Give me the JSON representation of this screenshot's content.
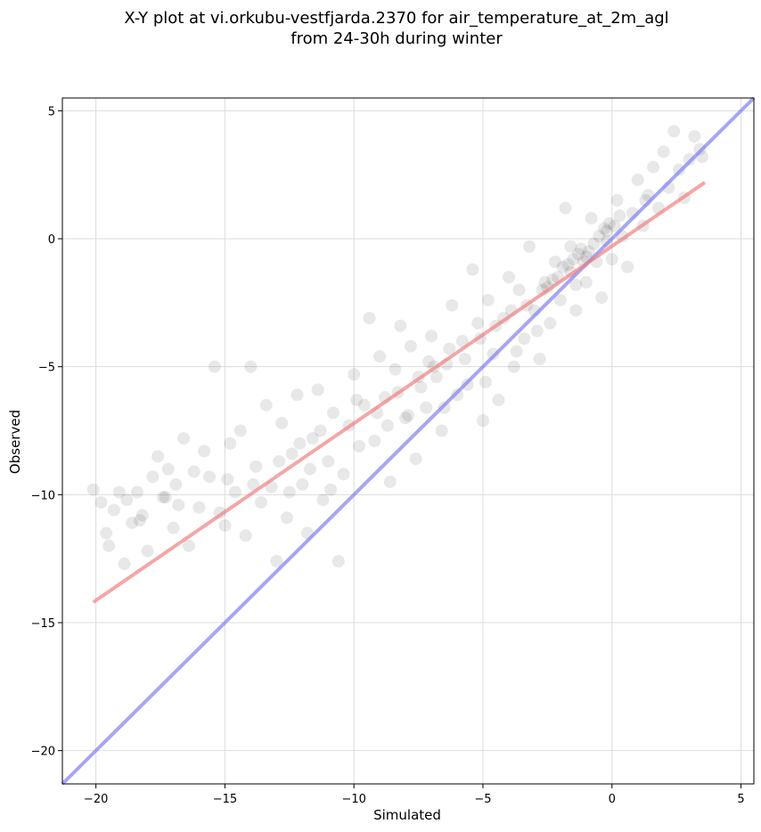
{
  "chart_data": {
    "type": "scatter",
    "title": [
      "X-Y plot at vi.orkubu-vestfjarda.2370 for air_temperature_at_2m_agl",
      "from 24-30h during winter"
    ],
    "xlabel": "Simulated",
    "ylabel": "Observed",
    "xlim": [
      -21.3,
      5.5
    ],
    "ylim": [
      -21.3,
      5.5
    ],
    "xticks": [
      -20,
      -15,
      -10,
      -5,
      0,
      5
    ],
    "yticks": [
      -20,
      -15,
      -10,
      -5,
      0,
      5
    ],
    "xtick_labels": [
      "−20",
      "−15",
      "−10",
      "−5",
      "0",
      "5"
    ],
    "ytick_labels": [
      "−20",
      "−15",
      "−10",
      "−5",
      "0",
      "5"
    ],
    "grid": true,
    "points": [
      [
        -20.1,
        -9.8
      ],
      [
        -19.8,
        -10.3
      ],
      [
        -19.6,
        -11.5
      ],
      [
        -19.5,
        -12.0
      ],
      [
        -19.3,
        -10.6
      ],
      [
        -19.1,
        -9.9
      ],
      [
        -18.9,
        -12.7
      ],
      [
        -18.8,
        -10.2
      ],
      [
        -18.6,
        -11.1
      ],
      [
        -18.4,
        -9.9
      ],
      [
        -18.2,
        -10.8
      ],
      [
        -18.0,
        -12.2
      ],
      [
        -17.8,
        -9.3
      ],
      [
        -17.6,
        -8.5
      ],
      [
        -17.4,
        -10.1
      ],
      [
        -17.2,
        -9.0
      ],
      [
        -17.0,
        -11.3
      ],
      [
        -16.8,
        -10.4
      ],
      [
        -16.6,
        -7.8
      ],
      [
        -16.4,
        -12.0
      ],
      [
        -16.2,
        -9.1
      ],
      [
        -16.0,
        -10.5
      ],
      [
        -15.8,
        -8.3
      ],
      [
        -15.6,
        -9.3
      ],
      [
        -15.4,
        -5.0
      ],
      [
        -15.2,
        -10.7
      ],
      [
        -15.0,
        -11.2
      ],
      [
        -14.8,
        -8.0
      ],
      [
        -14.6,
        -9.9
      ],
      [
        -14.4,
        -7.5
      ],
      [
        -14.2,
        -11.6
      ],
      [
        -14.0,
        -5.0
      ],
      [
        -13.8,
        -8.9
      ],
      [
        -13.6,
        -10.3
      ],
      [
        -13.4,
        -6.5
      ],
      [
        -13.2,
        -9.7
      ],
      [
        -13.0,
        -12.6
      ],
      [
        -12.8,
        -7.2
      ],
      [
        -12.6,
        -10.9
      ],
      [
        -12.4,
        -8.4
      ],
      [
        -12.2,
        -6.1
      ],
      [
        -12.0,
        -9.6
      ],
      [
        -11.8,
        -11.5
      ],
      [
        -11.6,
        -7.8
      ],
      [
        -11.4,
        -5.9
      ],
      [
        -11.2,
        -10.2
      ],
      [
        -11.0,
        -8.7
      ],
      [
        -10.8,
        -6.8
      ],
      [
        -10.6,
        -12.6
      ],
      [
        -10.4,
        -9.2
      ],
      [
        -10.2,
        -7.3
      ],
      [
        -10.0,
        -5.3
      ],
      [
        -9.8,
        -8.1
      ],
      [
        -9.6,
        -6.5
      ],
      [
        -9.4,
        -3.1
      ],
      [
        -9.2,
        -7.9
      ],
      [
        -9.0,
        -4.6
      ],
      [
        -8.8,
        -6.2
      ],
      [
        -8.6,
        -9.5
      ],
      [
        -8.4,
        -5.1
      ],
      [
        -8.2,
        -3.4
      ],
      [
        -8.0,
        -7.0
      ],
      [
        -7.8,
        -4.2
      ],
      [
        -7.6,
        -8.6
      ],
      [
        -7.4,
        -5.8
      ],
      [
        -7.2,
        -6.6
      ],
      [
        -7.0,
        -3.8
      ],
      [
        -6.8,
        -5.4
      ],
      [
        -6.6,
        -7.5
      ],
      [
        -6.4,
        -4.9
      ],
      [
        -6.2,
        -2.6
      ],
      [
        -6.0,
        -6.1
      ],
      [
        -5.8,
        -4.0
      ],
      [
        -5.6,
        -5.7
      ],
      [
        -5.4,
        -1.2
      ],
      [
        -5.2,
        -3.3
      ],
      [
        -5.0,
        -7.1
      ],
      [
        -4.8,
        -2.4
      ],
      [
        -4.6,
        -4.5
      ],
      [
        -4.4,
        -6.3
      ],
      [
        -4.2,
        -3.1
      ],
      [
        -4.0,
        -1.5
      ],
      [
        -3.8,
        -5.0
      ],
      [
        -3.6,
        -2.0
      ],
      [
        -3.4,
        -3.9
      ],
      [
        -3.2,
        -0.3
      ],
      [
        -3.0,
        -2.8
      ],
      [
        -2.8,
        -4.7
      ],
      [
        -2.6,
        -1.7
      ],
      [
        -2.4,
        -3.3
      ],
      [
        -2.2,
        -0.9
      ],
      [
        -2.0,
        -2.4
      ],
      [
        -1.8,
        1.2
      ],
      [
        -1.6,
        -1.3
      ],
      [
        -1.4,
        -2.8
      ],
      [
        -1.2,
        -0.4
      ],
      [
        -1.0,
        -1.7
      ],
      [
        -0.8,
        0.8
      ],
      [
        -0.6,
        -0.9
      ],
      [
        -0.4,
        -2.3
      ],
      [
        -0.2,
        0.3
      ],
      [
        0.0,
        -0.8
      ],
      [
        0.2,
        1.5
      ],
      [
        0.4,
        0.1
      ],
      [
        0.6,
        -1.1
      ],
      [
        0.8,
        1.0
      ],
      [
        1.0,
        2.3
      ],
      [
        1.2,
        0.5
      ],
      [
        1.4,
        1.7
      ],
      [
        1.6,
        2.8
      ],
      [
        1.8,
        1.2
      ],
      [
        2.0,
        3.4
      ],
      [
        2.2,
        2.0
      ],
      [
        2.4,
        4.2
      ],
      [
        2.6,
        2.7
      ],
      [
        2.8,
        1.6
      ],
      [
        3.0,
        3.1
      ],
      [
        3.2,
        4.0
      ],
      [
        3.4,
        3.5
      ],
      [
        3.5,
        3.2
      ],
      [
        -9.9,
        -6.3
      ],
      [
        -9.1,
        -6.8
      ],
      [
        -8.3,
        -6.0
      ],
      [
        -7.5,
        -5.4
      ],
      [
        -6.9,
        -5.0
      ],
      [
        -6.3,
        -4.3
      ],
      [
        -5.7,
        -4.7
      ],
      [
        -5.1,
        -3.9
      ],
      [
        -4.5,
        -3.4
      ],
      [
        -3.9,
        -2.8
      ],
      [
        -3.3,
        -2.6
      ],
      [
        -2.7,
        -2.0
      ],
      [
        -2.1,
        -1.5
      ],
      [
        -1.9,
        -1.1
      ],
      [
        -1.7,
        -1.0
      ],
      [
        -1.5,
        -0.8
      ],
      [
        -1.3,
        -0.6
      ],
      [
        -1.1,
        -0.9
      ],
      [
        -0.9,
        -0.5
      ],
      [
        -0.7,
        -0.2
      ],
      [
        -0.5,
        0.1
      ],
      [
        -0.3,
        0.4
      ],
      [
        -0.1,
        0.6
      ],
      [
        0.1,
        0.5
      ],
      [
        0.3,
        0.9
      ],
      [
        -2.3,
        -1.6
      ],
      [
        -2.5,
        -1.9
      ],
      [
        -1.6,
        -0.3
      ],
      [
        -1.0,
        -0.7
      ],
      [
        -0.2,
        -0.1
      ],
      [
        -12.1,
        -8.0
      ],
      [
        -11.7,
        -9.0
      ],
      [
        -12.5,
        -9.9
      ],
      [
        -11.3,
        -7.5
      ],
      [
        -10.9,
        -9.8
      ],
      [
        -8.7,
        -7.3
      ],
      [
        -7.9,
        -6.9
      ],
      [
        -7.1,
        -4.8
      ],
      [
        -6.5,
        -6.6
      ],
      [
        -4.9,
        -5.6
      ],
      [
        -17.3,
        -10.1
      ],
      [
        -16.9,
        -9.6
      ],
      [
        -18.3,
        -11.0
      ],
      [
        -14.9,
        -9.4
      ],
      [
        -13.9,
        -9.6
      ],
      [
        -12.9,
        -8.7
      ],
      [
        -3.7,
        -4.4
      ],
      [
        -2.9,
        -3.6
      ],
      [
        -1.4,
        -1.8
      ],
      [
        1.3,
        1.5
      ]
    ],
    "fit_line": {
      "x": [
        -20.1,
        3.6
      ],
      "y": [
        -14.2,
        2.2
      ],
      "color": "#f08080"
    },
    "identity_line": {
      "x": [
        -21.3,
        5.5
      ],
      "y": [
        -21.3,
        5.5
      ],
      "color": "#8080f0"
    },
    "point_color": "#000000"
  }
}
